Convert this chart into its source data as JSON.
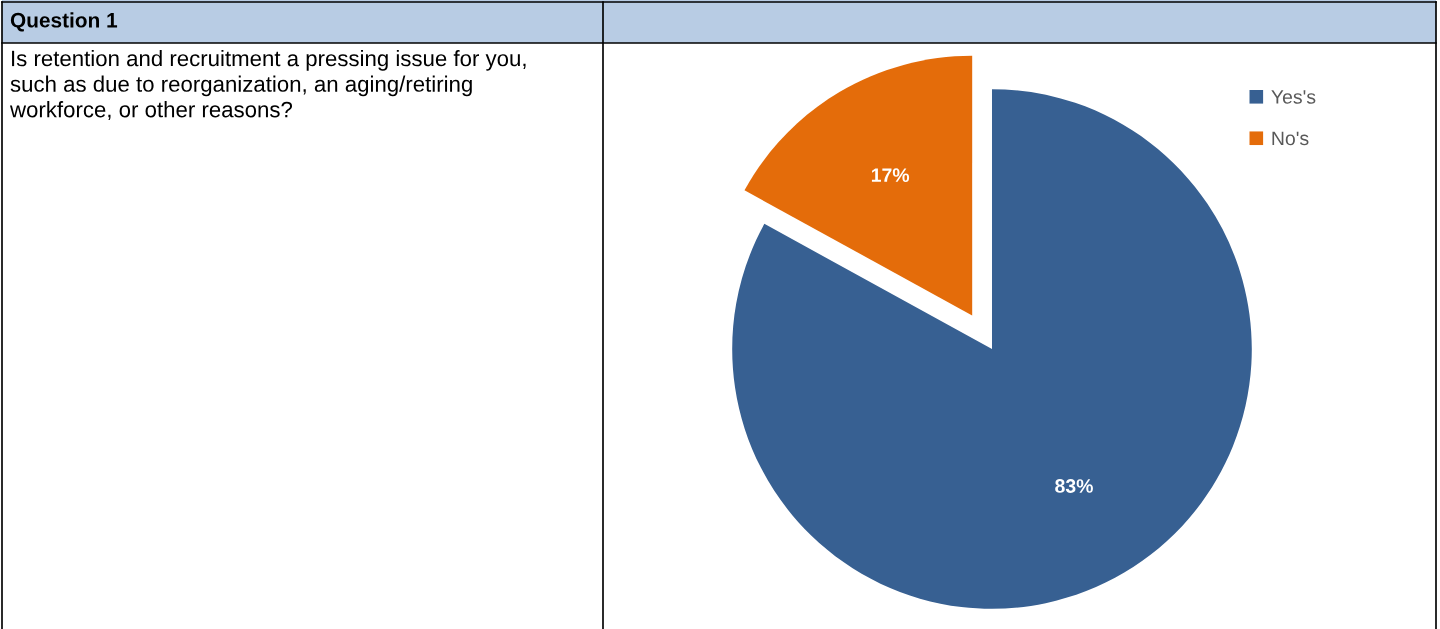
{
  "chart_data": {
    "type": "pie",
    "title": "Question 1",
    "subtitle": "Is retention and recruitment a pressing issue for you, such as due to reorganization, an aging/retiring workforce, or other reasons?",
    "categories": [
      "Yes's",
      "No's"
    ],
    "values": [
      83,
      17
    ],
    "colors": [
      "#376092",
      "#e46c0a"
    ],
    "value_labels": [
      "83%",
      "17%"
    ],
    "legend": "top right"
  }
}
